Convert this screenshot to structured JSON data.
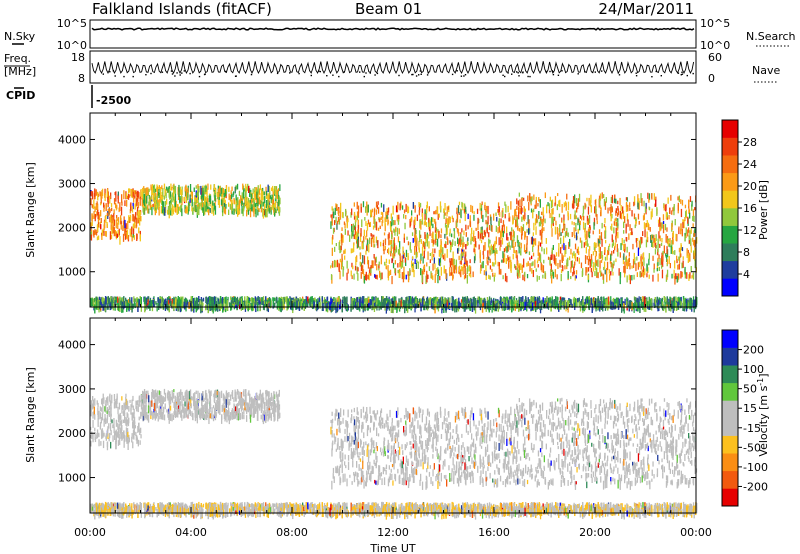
{
  "header": {
    "site": "Falkland Islands (fitACF)",
    "beam": "Beam 01",
    "date": "24/Mar/2011"
  },
  "status_panels": {
    "nsky": {
      "label": "N.Sky",
      "ticks": [
        "10^5",
        "10^0"
      ]
    },
    "nsearch": {
      "label": "N.Search",
      "ticks": [
        "10^5",
        "10^0"
      ]
    },
    "freq": {
      "label_line1": "Freq.",
      "label_line2": "[MHz]",
      "ticks": [
        "18",
        "8"
      ]
    },
    "nave": {
      "label": "Nave",
      "ticks": [
        "60",
        "0"
      ]
    },
    "cpid": {
      "label": "CPID",
      "value": "-2500"
    }
  },
  "colors": {
    "scale": [
      "#0000ff",
      "#1f3d9e",
      "#2e7d5b",
      "#26a641",
      "#90c83c",
      "#f2c71b",
      "#fb9a16",
      "#f56d10",
      "#ee3e0c",
      "#e60000"
    ],
    "velocity": [
      "#e60000",
      "#f25a0f",
      "#fa8e14",
      "#fcc01e",
      "#bebebe",
      "#bebebe",
      "#61c73c",
      "#2e8b57",
      "#1e3a9c",
      "#0000ff"
    ]
  },
  "chart_data": [
    {
      "type": "heatmap",
      "quantity": "power",
      "ylabel": "Slant Range [km]",
      "ylim": [
        200,
        4600
      ],
      "yticks": [
        "1000",
        "2000",
        "3000",
        "4000"
      ],
      "colorbar": {
        "label": "Power [dB]",
        "range": [
          0,
          32
        ],
        "ticks": [
          "4",
          "8",
          "12",
          "16",
          "20",
          "24",
          "28"
        ]
      },
      "scatter_bands": [
        {
          "x_start_h": 0.0,
          "x_end_h": 2.0,
          "range_low_km": 1800,
          "range_high_km": 2900,
          "value_low": 16,
          "value_high": 28
        },
        {
          "x_start_h": 2.0,
          "x_end_h": 7.5,
          "range_low_km": 2400,
          "range_high_km": 3000,
          "value_low": 10,
          "value_high": 22
        },
        {
          "x_start_h": 9.5,
          "x_end_h": 16.8,
          "range_low_km": 900,
          "range_high_km": 2600,
          "value_low": 12,
          "value_high": 28
        },
        {
          "x_start_h": 16.8,
          "x_end_h": 24.0,
          "range_low_km": 900,
          "range_high_km": 2800,
          "value_low": 12,
          "value_high": 28
        },
        {
          "x_start_h": 0.0,
          "x_end_h": 24.0,
          "range_low_km": 250,
          "range_high_km": 450,
          "value_low": 4,
          "value_high": 16
        }
      ]
    },
    {
      "type": "heatmap",
      "quantity": "velocity",
      "ylabel": "Slant Range [km]",
      "ylim": [
        200,
        4600
      ],
      "yticks": [
        "1000",
        "2000",
        "3000",
        "4000"
      ],
      "colorbar": {
        "label_main": "Velocity [m s",
        "label_sup": "-1",
        "label_end": "]",
        "range": [
          -250,
          250
        ],
        "ticks": [
          "-200",
          "-100",
          "-50",
          "-15",
          "15",
          "50",
          "100",
          "200"
        ]
      },
      "scatter_bands": [
        {
          "x_start_h": 0.0,
          "x_end_h": 2.0,
          "range_low_km": 1800,
          "range_high_km": 2900,
          "value_low": -15,
          "value_high": 15
        },
        {
          "x_start_h": 2.0,
          "x_end_h": 7.5,
          "range_low_km": 2400,
          "range_high_km": 3000,
          "value_low": -15,
          "value_high": 15
        },
        {
          "x_start_h": 9.5,
          "x_end_h": 16.8,
          "range_low_km": 900,
          "range_high_km": 2600,
          "value_low": -15,
          "value_high": 15
        },
        {
          "x_start_h": 16.8,
          "x_end_h": 24.0,
          "range_low_km": 900,
          "range_high_km": 2800,
          "value_low": -15,
          "value_high": 15
        },
        {
          "x_start_h": 0.0,
          "x_end_h": 24.0,
          "range_low_km": 250,
          "range_high_km": 450,
          "value_low": -100,
          "value_high": 50
        }
      ]
    }
  ],
  "xaxis": {
    "label": "Time UT",
    "xlim_hours": [
      0,
      24
    ],
    "ticks": [
      "00:00",
      "04:00",
      "08:00",
      "12:00",
      "16:00",
      "20:00",
      "00:00"
    ]
  }
}
